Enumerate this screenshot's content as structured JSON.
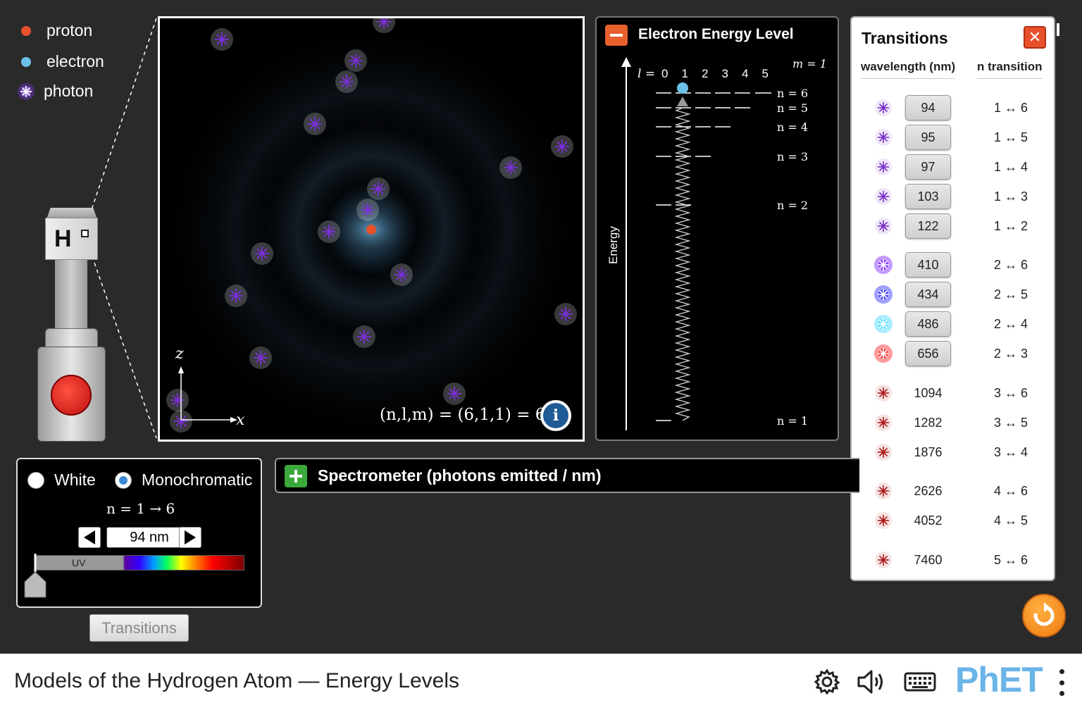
{
  "legend": {
    "proton": "proton",
    "electron": "electron",
    "photon": "photon",
    "colors": {
      "proton": "#e8512c",
      "electron": "#6cc0e8",
      "photon": "#8a3cff"
    }
  },
  "gun": {
    "element_label": "H"
  },
  "atom_view": {
    "axis_z": "z",
    "axis_x": "x",
    "state_formula": "(n,l,m) = (6,1,1) = 6p"
  },
  "energy_panel": {
    "title": "Electron Energy Level",
    "collapse_symbol": "−",
    "energy_axis_label": "Energy",
    "l_label": "l =",
    "l_values": [
      "0",
      "1",
      "2",
      "3",
      "4",
      "5"
    ],
    "m_label": "m = 1",
    "levels": [
      "n = 6",
      "n = 5",
      "n = 4",
      "n = 3",
      "n = 2",
      "n = 1"
    ]
  },
  "transitions": {
    "title": "Transitions",
    "close_symbol": "✕",
    "col_wavelength": "wavelength (nm)",
    "col_transition": "n transition",
    "rows": [
      {
        "wavelength": "94",
        "transition": "1 ↔ 6",
        "color": "#7a30c8",
        "button": true
      },
      {
        "wavelength": "95",
        "transition": "1 ↔ 5",
        "color": "#7a30c8",
        "button": true
      },
      {
        "wavelength": "97",
        "transition": "1 ↔ 4",
        "color": "#7a30c8",
        "button": true
      },
      {
        "wavelength": "103",
        "transition": "1 ↔ 3",
        "color": "#7a30c8",
        "button": true
      },
      {
        "wavelength": "122",
        "transition": "1 ↔ 2",
        "color": "#7a30c8",
        "button": true
      },
      {
        "wavelength": "410",
        "transition": "2 ↔ 6",
        "color": "#7a22ff",
        "button": true
      },
      {
        "wavelength": "434",
        "transition": "2 ↔ 5",
        "color": "#2a2aff",
        "button": true
      },
      {
        "wavelength": "486",
        "transition": "2 ↔ 4",
        "color": "#3cd8ff",
        "button": true
      },
      {
        "wavelength": "656",
        "transition": "2 ↔ 3",
        "color": "#ff2020",
        "button": true
      },
      {
        "wavelength": "1094",
        "transition": "3 ↔ 6",
        "color": "#b01818",
        "button": false
      },
      {
        "wavelength": "1282",
        "transition": "3 ↔ 5",
        "color": "#b01818",
        "button": false
      },
      {
        "wavelength": "1876",
        "transition": "3 ↔ 4",
        "color": "#b01818",
        "button": false
      },
      {
        "wavelength": "2626",
        "transition": "4 ↔ 6",
        "color": "#b01818",
        "button": false
      },
      {
        "wavelength": "4052",
        "transition": "4 ↔ 5",
        "color": "#b01818",
        "button": false
      },
      {
        "wavelength": "7460",
        "transition": "5 ↔ 6",
        "color": "#b01818",
        "button": false
      }
    ]
  },
  "light_panel": {
    "white_label": "White",
    "mono_label": "Monochromatic",
    "selected": "Monochromatic",
    "transition_text": "n = 1 → 6",
    "wavelength_value": "94 nm",
    "uv_label": "UV",
    "transitions_button": "Transitions"
  },
  "spectrometer": {
    "expand_symbol": "+",
    "title": "Spectrometer (photons emitted / nm)"
  },
  "navbar": {
    "title": "Models of the Hydrogen Atom — Energy Levels",
    "brand": "PhET"
  }
}
